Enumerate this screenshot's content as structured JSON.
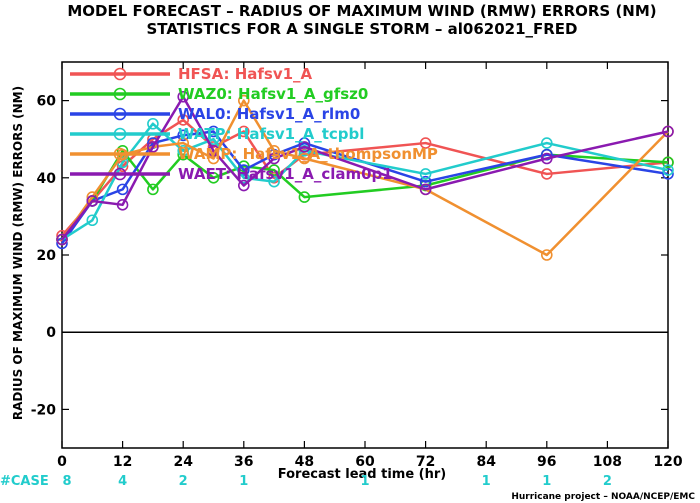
{
  "chart_data": {
    "type": "line",
    "title": "MODEL FORECAST – RADIUS OF MAXIMUM WIND (RMW) ERRORS (NM)",
    "subtitle": "STATISTICS FOR A SINGLE STORM – al062021_FRED",
    "xlabel": "Forecast lead time (hr)",
    "ylabel": "RADIUS OF MAXIMUM WIND (RMW) ERRORS (NM)",
    "xlim": [
      0,
      120
    ],
    "ylim": [
      -30,
      70
    ],
    "xticks": [
      0,
      12,
      24,
      36,
      48,
      60,
      72,
      84,
      96,
      108,
      120
    ],
    "yticks": [
      -20,
      0,
      20,
      40,
      60
    ],
    "grid": false,
    "legend_position": "top-left",
    "series": [
      {
        "name": "HFSA: Hafsv1_A",
        "color": "#f05454",
        "points": [
          [
            0,
            25
          ],
          [
            6,
            34
          ],
          [
            12,
            43
          ],
          [
            18,
            50
          ],
          [
            24,
            55
          ],
          [
            30,
            48
          ],
          [
            36,
            52
          ],
          [
            42,
            40
          ],
          [
            48,
            46
          ],
          [
            72,
            49
          ],
          [
            96,
            41
          ],
          [
            120,
            44
          ]
        ]
      },
      {
        "name": "WAZ0: Hafsv1_A_gfsz0",
        "color": "#22cc22",
        "points": [
          [
            0,
            24
          ],
          [
            6,
            34
          ],
          [
            12,
            47
          ],
          [
            18,
            37
          ],
          [
            24,
            46
          ],
          [
            30,
            40
          ],
          [
            36,
            43
          ],
          [
            42,
            42
          ],
          [
            48,
            35
          ],
          [
            72,
            38
          ],
          [
            96,
            46
          ],
          [
            120,
            44
          ]
        ]
      },
      {
        "name": "WAL0: Hafsv1_A_rlm0",
        "color": "#2a44e6",
        "points": [
          [
            0,
            23
          ],
          [
            6,
            34
          ],
          [
            12,
            37
          ],
          [
            18,
            49
          ],
          [
            24,
            51
          ],
          [
            30,
            52
          ],
          [
            36,
            42
          ],
          [
            42,
            46
          ],
          [
            48,
            49
          ],
          [
            72,
            39
          ],
          [
            96,
            46
          ],
          [
            120,
            41
          ]
        ]
      },
      {
        "name": "WATP: Hafsv1_A_tcpbl",
        "color": "#22cccc",
        "points": [
          [
            0,
            24
          ],
          [
            6,
            29
          ],
          [
            12,
            44
          ],
          [
            18,
            54
          ],
          [
            24,
            47
          ],
          [
            30,
            50
          ],
          [
            36,
            40
          ],
          [
            42,
            39
          ],
          [
            48,
            47
          ],
          [
            72,
            41
          ],
          [
            96,
            49
          ],
          [
            120,
            42
          ]
        ]
      },
      {
        "name": "WAMP: Hafsv1_A_thompsonMP",
        "color": "#f09030",
        "points": [
          [
            0,
            24
          ],
          [
            6,
            35
          ],
          [
            12,
            46
          ],
          [
            18,
            48
          ],
          [
            24,
            49
          ],
          [
            30,
            45
          ],
          [
            36,
            60
          ],
          [
            42,
            47
          ],
          [
            48,
            45
          ],
          [
            72,
            37
          ],
          [
            96,
            20
          ],
          [
            120,
            52
          ]
        ]
      },
      {
        "name": "WAET: Hafsv1_A_clam0p1",
        "color": "#8a1ab0",
        "points": [
          [
            0,
            24
          ],
          [
            6,
            34
          ],
          [
            12,
            33
          ],
          [
            18,
            48
          ],
          [
            24,
            61
          ],
          [
            30,
            47
          ],
          [
            36,
            38
          ],
          [
            42,
            45
          ],
          [
            48,
            48
          ],
          [
            72,
            37
          ],
          [
            96,
            45
          ],
          [
            120,
            52
          ]
        ]
      }
    ],
    "case_label": "#CASE",
    "cases": [
      {
        "x": 0,
        "n": "8"
      },
      {
        "x": 12,
        "n": "4"
      },
      {
        "x": 24,
        "n": "2"
      },
      {
        "x": 36,
        "n": "1"
      },
      {
        "x": 60,
        "n": "1"
      },
      {
        "x": 84,
        "n": "1"
      },
      {
        "x": 96,
        "n": "1"
      },
      {
        "x": 108,
        "n": "2"
      }
    ]
  },
  "footer": "Hurricane project – NOAA/NCEP/EMC"
}
